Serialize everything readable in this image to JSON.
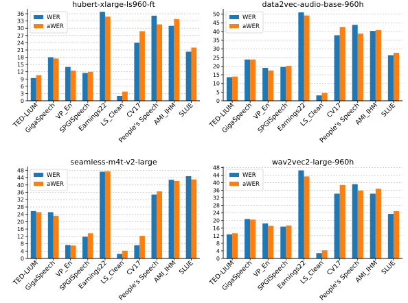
{
  "colors": {
    "WER": "#1f77b4",
    "aWER": "#ff7f0e"
  },
  "chart_data": [
    {
      "type": "bar",
      "title": "hubert-xlarge-ls960-ft",
      "categories": [
        "TED-LIUM",
        "GigaSpeech",
        "VP_En",
        "SPGISpeech",
        "Earnings22",
        "LS_Clean",
        "CV17",
        "People's Speech",
        "AMI_IHM",
        "SLUE"
      ],
      "series": [
        {
          "name": "WER",
          "values": [
            9.4,
            18.0,
            14.0,
            11.5,
            36.8,
            2.0,
            24.0,
            35.2,
            31.0,
            20.3
          ]
        },
        {
          "name": "aWER",
          "values": [
            10.6,
            17.5,
            12.5,
            12.0,
            34.8,
            3.8,
            28.8,
            31.6,
            33.8,
            22.0
          ]
        }
      ],
      "yticks": [
        0,
        3,
        6,
        9,
        12,
        15,
        18,
        21,
        24,
        27,
        30,
        33,
        36
      ],
      "ylim": [
        0,
        38
      ],
      "legend": "top-left",
      "grid": true
    },
    {
      "type": "bar",
      "title": "data2vec-audio-base-960h",
      "categories": [
        "TED-LIUM",
        "GigaSpeech",
        "VP_En",
        "SPGISpeech",
        "Earnings22",
        "LS_Clean",
        "CV17",
        "People's Speech",
        "AMI_IHM",
        "SLUE"
      ],
      "series": [
        {
          "name": "WER",
          "values": [
            13.6,
            23.8,
            19.0,
            19.5,
            51.0,
            3.1,
            37.8,
            43.8,
            40.3,
            26.3
          ]
        },
        {
          "name": "aWER",
          "values": [
            14.0,
            23.8,
            17.5,
            20.1,
            49.2,
            4.5,
            42.6,
            38.8,
            40.8,
            27.7
          ]
        }
      ],
      "yticks": [
        0,
        5,
        10,
        15,
        20,
        25,
        30,
        35,
        40,
        45,
        50
      ],
      "ylim": [
        0,
        53
      ],
      "legend": "top-left",
      "grid": true
    },
    {
      "type": "bar",
      "title": "seamless-m4t-v2-large",
      "categories": [
        "TED-LIUM",
        "GigaSpeech",
        "VP_En",
        "SPGISpeech",
        "Earnings22",
        "LS_Clean",
        "CV17",
        "People's Speech",
        "AMI_IHM",
        "SLUE"
      ],
      "series": [
        {
          "name": "WER",
          "values": [
            25.8,
            25.2,
            7.3,
            11.8,
            47.2,
            2.5,
            7.2,
            34.8,
            42.8,
            44.8
          ]
        },
        {
          "name": "aWER",
          "values": [
            25.2,
            23.2,
            7.0,
            13.7,
            47.4,
            4.2,
            12.3,
            36.5,
            42.2,
            43.0
          ]
        }
      ],
      "yticks": [
        0,
        4,
        8,
        12,
        16,
        20,
        24,
        28,
        32,
        36,
        40,
        44,
        48
      ],
      "ylim": [
        0,
        50
      ],
      "legend": "top-left",
      "grid": true
    },
    {
      "type": "bar",
      "title": "wav2vec2-large-960h",
      "categories": [
        "TED-LIUM",
        "GigaSpeech",
        "VP_En",
        "SPGISpeech",
        "Earnings22",
        "LS_Clean",
        "CV17",
        "People's Speech",
        "AMI_IHM",
        "SLUE"
      ],
      "series": [
        {
          "name": "WER",
          "values": [
            12.7,
            20.8,
            18.5,
            16.8,
            46.5,
            2.8,
            34.2,
            39.2,
            34.2,
            23.5
          ]
        },
        {
          "name": "aWER",
          "values": [
            13.3,
            20.5,
            17.2,
            17.4,
            43.3,
            4.3,
            38.8,
            35.8,
            36.8,
            25.0
          ]
        }
      ],
      "yticks": [
        0,
        4,
        8,
        12,
        16,
        20,
        24,
        28,
        32,
        36,
        40,
        44,
        48
      ],
      "ylim": [
        0,
        48.5
      ],
      "legend": "top-left",
      "grid": true
    }
  ]
}
